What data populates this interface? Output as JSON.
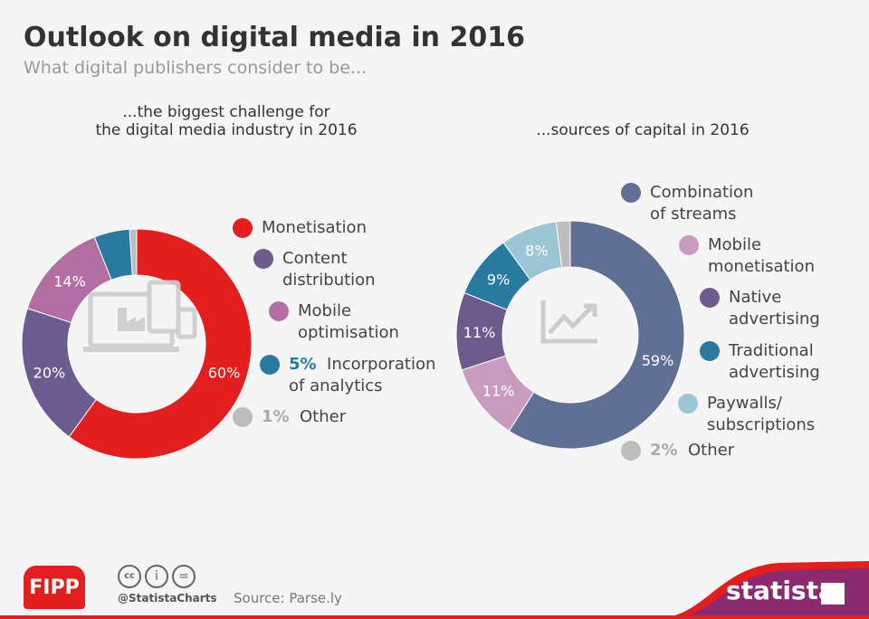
{
  "title": "Outlook on digital media in 2016",
  "subtitle": "What digital publishers consider to be...",
  "chart_data": [
    {
      "type": "pie",
      "donut": true,
      "title_lines": [
        "...the biggest challenge for",
        "the digital media industry in 2016"
      ],
      "slices": [
        {
          "name": "Monetisation",
          "value": 60,
          "label": "60%",
          "color": "#e31e1e"
        },
        {
          "name": "Content distribution",
          "value": 20,
          "label": "20%",
          "color": "#6b5b8e"
        },
        {
          "name": "Mobile optimisation",
          "value": 14,
          "label": "14%",
          "color": "#b36fa3"
        },
        {
          "name": "Incorporation of analytics",
          "value": 5,
          "label": "5%",
          "color": "#2a7aa0"
        },
        {
          "name": "Other",
          "value": 1,
          "label": "1%",
          "color": "#bdbdbd"
        }
      ],
      "legend": [
        [
          "Monetisation"
        ],
        [
          "Content",
          "distribution"
        ],
        [
          "Mobile",
          "optimisation"
        ],
        [
          "5%",
          "Incorporation",
          "of analytics"
        ],
        [
          "1%",
          "Other"
        ]
      ]
    },
    {
      "type": "pie",
      "donut": true,
      "title_lines": [
        "...sources of capital in 2016"
      ],
      "slices": [
        {
          "name": "Combination of streams",
          "value": 59,
          "label": "59%",
          "color": "#5f7094"
        },
        {
          "name": "Mobile monetisation",
          "value": 11,
          "label": "11%",
          "color": "#c99bbf"
        },
        {
          "name": "Native advertising",
          "value": 11,
          "label": "11%",
          "color": "#6e5a8c"
        },
        {
          "name": "Traditional advertising",
          "value": 9,
          "label": "9%",
          "color": "#2a7aa0"
        },
        {
          "name": "Paywalls/ subscriptions",
          "value": 8,
          "label": "8%",
          "color": "#9cc6d6"
        },
        {
          "name": "Other",
          "value": 2,
          "label": "2%",
          "color": "#bdbdbd"
        }
      ],
      "legend": [
        [
          "Combination",
          "of streams"
        ],
        [
          "Mobile",
          "monetisation"
        ],
        [
          "Native",
          "advertising"
        ],
        [
          "Traditional",
          "advertising"
        ],
        [
          "Paywalls/",
          "subscriptions"
        ],
        [
          "2%",
          "Other"
        ]
      ]
    }
  ],
  "footer": {
    "handle": "@StatistaCharts",
    "source": "Source: Parse.ly",
    "fipp": "FIPP",
    "statista": "statista"
  }
}
